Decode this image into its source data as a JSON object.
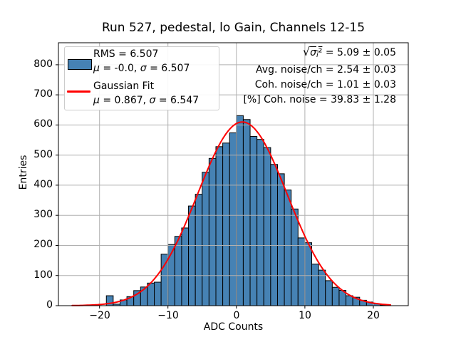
{
  "chart_data": {
    "type": "bar",
    "subtype": "histogram-with-gaussian-fit",
    "title": "Run 527, pedestal, lo Gain, Channels 12-15",
    "xlabel": "ADC Counts",
    "ylabel": "Entries",
    "xlim": [
      -26,
      25.1
    ],
    "ylim": [
      0,
      873
    ],
    "xticks": [
      -20,
      -10,
      0,
      10,
      20
    ],
    "xtick_labels": [
      "−20",
      "−10",
      "0",
      "10",
      "20"
    ],
    "yticks": [
      0,
      100,
      200,
      300,
      400,
      500,
      600,
      700,
      800
    ],
    "ytick_labels": [
      "0",
      "100",
      "200",
      "300",
      "400",
      "500",
      "600",
      "700",
      "800"
    ],
    "grid": true,
    "grid_color": "#b0b0b0",
    "bar_color": "#4682b4",
    "bar_edge_color": "#000000",
    "bin_start": -19,
    "bin_width": 1,
    "counts": [
      33,
      5,
      19,
      30,
      50,
      62,
      75,
      78,
      171,
      203,
      230,
      258,
      331,
      370,
      443,
      489,
      528,
      540,
      574,
      631,
      618,
      562,
      552,
      525,
      469,
      438,
      384,
      321,
      225,
      209,
      138,
      118,
      83,
      61,
      51,
      33,
      28,
      18,
      12,
      6,
      2
    ],
    "fit_curve": {
      "type": "gaussian",
      "amplitude": 610,
      "mu": 0.867,
      "sigma": 6.547,
      "x_start": -24,
      "x_end": 22.5,
      "color": "#ff0000",
      "line_width": 2
    },
    "legend": {
      "position": "upper left",
      "hist": {
        "line1": "RMS = 6.507",
        "mu_sym": "μ",
        "mu_val": " = -0.0, ",
        "sigma_sym": "σ",
        "sigma_val": " = 6.507"
      },
      "fit": {
        "line1": "Gaussian Fit",
        "mu_sym": "μ",
        "mu_val": " = 0.867, ",
        "sigma_sym": "σ",
        "sigma_val": " = 6.547"
      }
    },
    "annotations": {
      "line1": {
        "sqrt": "√",
        "sym": "σ",
        "sub": "i",
        "sup": "²",
        "rest": " = 5.09 ± 0.05"
      },
      "line2": "Avg. noise/ch = 2.54 ± 0.03",
      "line3": "Coh. noise/ch = 1.01 ± 0.03",
      "line4": "[%] Coh. noise = 39.83 ± 1.28"
    }
  }
}
